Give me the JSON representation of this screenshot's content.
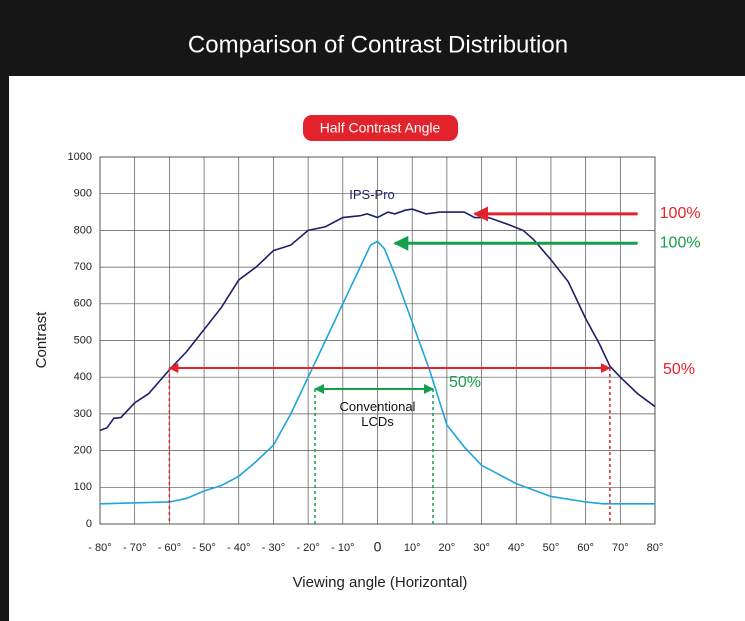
{
  "chart_data": {
    "type": "line",
    "title": "Comparison of Contrast Distribution",
    "xlabel": "Viewing angle (Horizontal)",
    "ylabel": "Contrast",
    "xlim": [
      -80,
      80
    ],
    "ylim": [
      0,
      1000
    ],
    "xticks": [
      {
        "value": -80,
        "label": "- 80°"
      },
      {
        "value": -70,
        "label": "- 70°"
      },
      {
        "value": -60,
        "label": "- 60°"
      },
      {
        "value": -50,
        "label": "- 50°"
      },
      {
        "value": -40,
        "label": "- 40°"
      },
      {
        "value": -30,
        "label": "- 30°"
      },
      {
        "value": -20,
        "label": "- 20°"
      },
      {
        "value": -10,
        "label": "- 10°"
      },
      0,
      {
        "value": 10,
        "label": "10°"
      },
      {
        "value": 20,
        "label": "20°"
      },
      {
        "value": 30,
        "label": "30°"
      },
      {
        "value": 40,
        "label": "40°"
      },
      {
        "value": 50,
        "label": "50°"
      },
      {
        "value": 60,
        "label": "60°"
      },
      {
        "value": 70,
        "label": "70°"
      },
      {
        "value": 80,
        "label": "80°"
      }
    ],
    "yticks": [
      0,
      100,
      200,
      300,
      400,
      500,
      600,
      700,
      800,
      900,
      1000
    ],
    "grid": true,
    "series": [
      {
        "name": "IPS-Pro",
        "color": "#1c1f6b",
        "x": [
          -80,
          -78,
          -76,
          -74,
          -70,
          -66,
          -60,
          -55,
          -50,
          -45,
          -40,
          -35,
          -30,
          -25,
          -20,
          -15,
          -10,
          -5,
          -3,
          0,
          3,
          5,
          8,
          10,
          14,
          18,
          25,
          28,
          32,
          38,
          42,
          45,
          50,
          55,
          60,
          64,
          67,
          70,
          75,
          80
        ],
        "values": [
          255,
          262,
          288,
          290,
          330,
          355,
          420,
          470,
          530,
          590,
          665,
          700,
          745,
          760,
          800,
          810,
          835,
          840,
          845,
          835,
          850,
          845,
          855,
          858,
          845,
          850,
          850,
          835,
          835,
          815,
          800,
          775,
          720,
          660,
          560,
          490,
          430,
          400,
          355,
          320
        ]
      },
      {
        "name": "Conventional LCDs",
        "color": "#1ea5de",
        "x": [
          -80,
          -60,
          -55,
          -50,
          -45,
          -40,
          -35,
          -30,
          -25,
          -20,
          -15,
          -10,
          -5,
          -2,
          0,
          2,
          5,
          10,
          15,
          20,
          25,
          30,
          40,
          50,
          60,
          65,
          80
        ],
        "values": [
          55,
          60,
          70,
          90,
          105,
          130,
          170,
          215,
          300,
          400,
          500,
          600,
          700,
          760,
          770,
          750,
          680,
          550,
          420,
          270,
          210,
          160,
          110,
          75,
          60,
          55,
          55
        ]
      }
    ],
    "annotations": {
      "banner": "Half Contrast Angle",
      "ips": {
        "color": "#e3232c",
        "full_label": "100%",
        "full_level": 845,
        "full_from": 75,
        "full_to": 28,
        "half_label": "50%",
        "half_level": 425,
        "half_angles": [
          -60,
          67
        ]
      },
      "conventional": {
        "color": "#14a04a",
        "full_label": "100%",
        "full_level": 765,
        "full_from": 75,
        "full_to": 5,
        "half_label": "50%",
        "half_level": 368,
        "half_angles": [
          -18,
          16
        ]
      }
    }
  }
}
